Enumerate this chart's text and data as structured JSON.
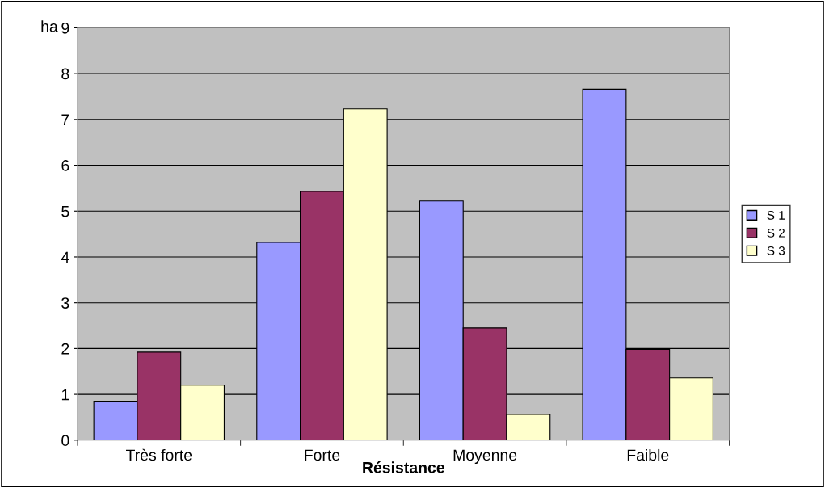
{
  "chart_data": {
    "type": "bar",
    "ylabel": "ha",
    "xlabel": "Résistance",
    "categories": [
      "Très forte",
      "Forte",
      "Moyenne",
      "Faible"
    ],
    "series": [
      {
        "name": "S 1",
        "color": "#9999ff",
        "values": [
          0.85,
          4.32,
          5.22,
          7.66
        ]
      },
      {
        "name": "S 2",
        "color": "#993366",
        "values": [
          1.92,
          5.43,
          2.45,
          1.98
        ]
      },
      {
        "name": "S 3",
        "color": "#ffffcc",
        "values": [
          1.2,
          7.23,
          0.56,
          1.36
        ]
      }
    ],
    "ylim": [
      0,
      9
    ],
    "yticks": [
      0,
      1,
      2,
      3,
      4,
      5,
      6,
      7,
      8,
      9
    ],
    "grid": "y",
    "legend": "right"
  }
}
